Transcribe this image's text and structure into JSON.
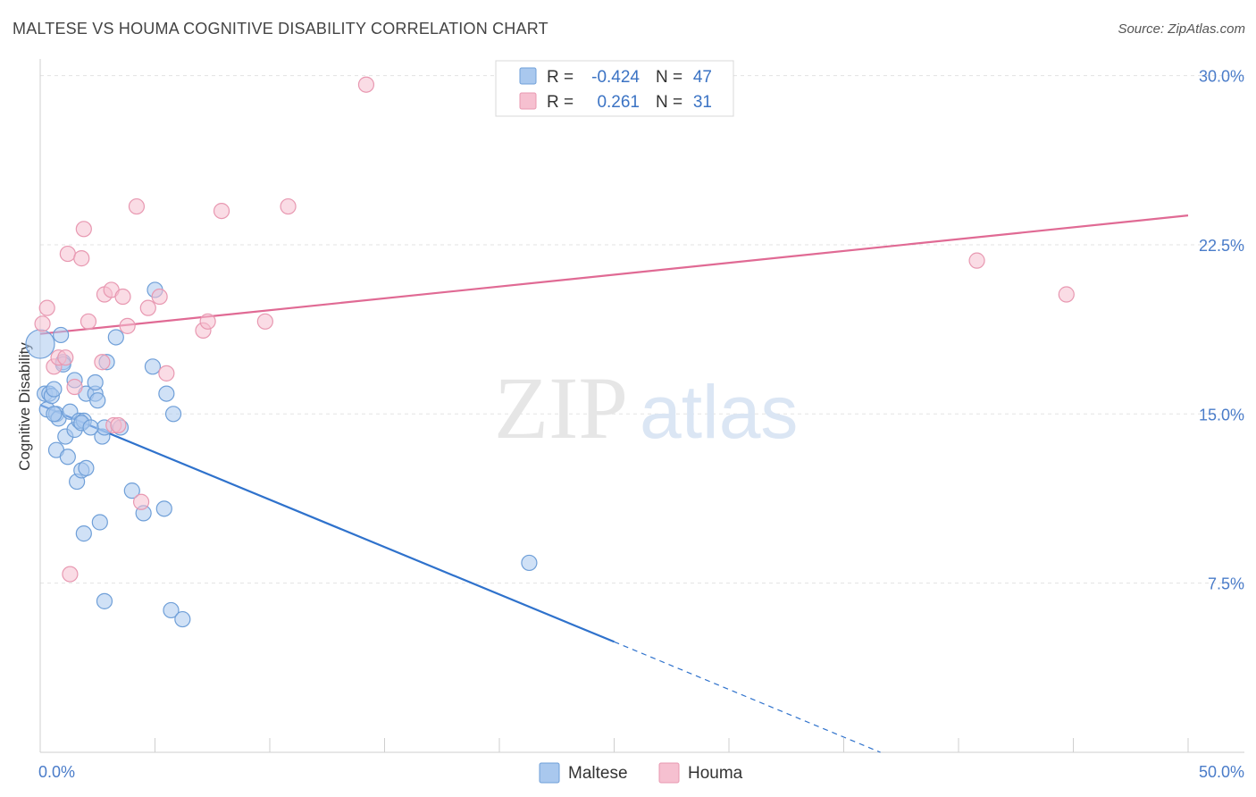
{
  "title": "MALTESE VS HOUMA COGNITIVE DISABILITY CORRELATION CHART",
  "source": "Source: ZipAtlas.com",
  "watermark": {
    "zip": "ZIP",
    "atlas": "atlas"
  },
  "colors": {
    "blue_fill": "#a9c8ee",
    "blue_stroke": "#6f9fd8",
    "blue_line": "#2f72cc",
    "pink_fill": "#f6c0d0",
    "pink_stroke": "#e898b1",
    "pink_line": "#e06a94",
    "tick_text": "#4a7cc9",
    "grid": "#e3e3e3"
  },
  "legend": {
    "rows": [
      {
        "r_label": "R =",
        "r_value": "-0.424",
        "n_label": "N =",
        "n_value": "47",
        "series": "Maltese"
      },
      {
        "r_label": "R =",
        "r_value": "0.261",
        "n_label": "N =",
        "n_value": "31",
        "series": "Houma"
      }
    ],
    "bottom": [
      "Maltese",
      "Houma"
    ]
  },
  "chart_data": {
    "type": "scatter",
    "title": "MALTESE VS HOUMA COGNITIVE DISABILITY CORRELATION CHART",
    "xlabel": "",
    "ylabel": "Cognitive Disability",
    "xlim": [
      0,
      50
    ],
    "ylim": [
      0,
      30.5
    ],
    "x_tick_labels": [
      "0.0%",
      "50.0%"
    ],
    "y_ticks": [
      7.5,
      15.0,
      22.5,
      30.0
    ],
    "y_tick_labels": [
      "7.5%",
      "15.0%",
      "22.5%",
      "30.0%"
    ],
    "grid": true,
    "legend_position": "top-center",
    "series": [
      {
        "name": "Maltese",
        "color": "#a9c8ee",
        "points": [
          [
            0.0,
            18.1
          ],
          [
            0.2,
            15.9
          ],
          [
            0.3,
            15.2
          ],
          [
            0.4,
            15.9
          ],
          [
            0.5,
            15.8
          ],
          [
            0.6,
            16.1
          ],
          [
            0.7,
            15.0
          ],
          [
            0.8,
            14.8
          ],
          [
            0.7,
            13.4
          ],
          [
            0.9,
            18.5
          ],
          [
            1.0,
            17.3
          ],
          [
            1.1,
            14.0
          ],
          [
            1.2,
            13.1
          ],
          [
            1.3,
            15.1
          ],
          [
            1.5,
            14.3
          ],
          [
            1.5,
            16.5
          ],
          [
            1.6,
            12.0
          ],
          [
            1.7,
            14.7
          ],
          [
            1.8,
            12.5
          ],
          [
            1.9,
            9.7
          ],
          [
            1.9,
            14.7
          ],
          [
            2.0,
            15.9
          ],
          [
            2.0,
            12.6
          ],
          [
            2.4,
            15.9
          ],
          [
            2.4,
            16.4
          ],
          [
            2.5,
            15.6
          ],
          [
            2.6,
            10.2
          ],
          [
            2.7,
            14.0
          ],
          [
            2.8,
            14.4
          ],
          [
            2.8,
            6.7
          ],
          [
            2.9,
            17.3
          ],
          [
            3.3,
            18.4
          ],
          [
            3.5,
            14.4
          ],
          [
            4.0,
            11.6
          ],
          [
            4.5,
            10.6
          ],
          [
            4.9,
            17.1
          ],
          [
            5.0,
            20.5
          ],
          [
            5.4,
            10.8
          ],
          [
            5.5,
            15.9
          ],
          [
            5.7,
            6.3
          ],
          [
            5.8,
            15.0
          ],
          [
            6.2,
            5.9
          ],
          [
            0.6,
            15.0
          ],
          [
            1.0,
            17.2
          ],
          [
            1.8,
            14.6
          ],
          [
            2.2,
            14.4
          ],
          [
            21.3,
            8.4
          ]
        ]
      },
      {
        "name": "Houma",
        "color": "#f6c0d0",
        "points": [
          [
            0.1,
            19.0
          ],
          [
            0.3,
            19.7
          ],
          [
            0.6,
            17.1
          ],
          [
            0.8,
            17.5
          ],
          [
            1.1,
            17.5
          ],
          [
            1.2,
            22.1
          ],
          [
            1.3,
            7.9
          ],
          [
            1.5,
            16.2
          ],
          [
            1.8,
            21.9
          ],
          [
            1.9,
            23.2
          ],
          [
            2.1,
            19.1
          ],
          [
            2.7,
            17.3
          ],
          [
            2.8,
            20.3
          ],
          [
            3.1,
            20.5
          ],
          [
            3.2,
            14.5
          ],
          [
            3.4,
            14.5
          ],
          [
            3.6,
            20.2
          ],
          [
            3.8,
            18.9
          ],
          [
            4.2,
            24.2
          ],
          [
            4.4,
            11.1
          ],
          [
            4.7,
            19.7
          ],
          [
            5.2,
            20.2
          ],
          [
            5.5,
            16.8
          ],
          [
            7.1,
            18.7
          ],
          [
            7.3,
            19.1
          ],
          [
            7.9,
            24.0
          ],
          [
            9.8,
            19.1
          ],
          [
            10.8,
            24.2
          ],
          [
            14.2,
            29.6
          ],
          [
            40.8,
            21.8
          ],
          [
            44.7,
            20.3
          ]
        ]
      }
    ],
    "trend_lines": [
      {
        "series": "Maltese",
        "solid": [
          [
            0,
            15.4
          ],
          [
            25,
            4.9
          ]
        ],
        "dashed": [
          [
            25,
            4.9
          ],
          [
            36.6,
            0
          ]
        ]
      },
      {
        "series": "Houma",
        "solid": [
          [
            0,
            18.55
          ],
          [
            50,
            23.8
          ]
        ]
      }
    ]
  }
}
